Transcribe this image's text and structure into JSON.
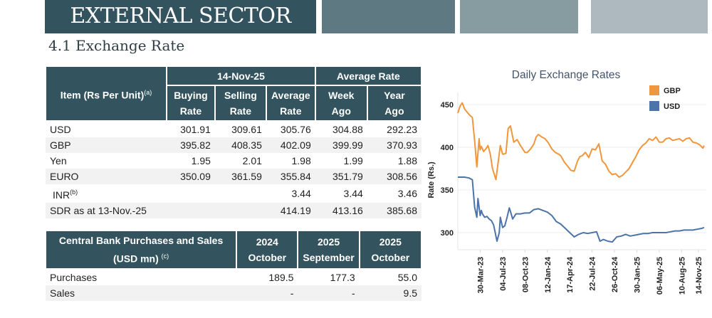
{
  "banner": {
    "title": "EXTERNAL SECTOR"
  },
  "section": {
    "title": "4.1 Exchange Rate"
  },
  "rates_table": {
    "item_header": "Item (Rs Per Unit)",
    "item_note": "(a)",
    "date_group": "14-Nov-25",
    "avg_group": "Average Rate",
    "cols": [
      {
        "line1": "Buying",
        "line2": "Rate"
      },
      {
        "line1": "Selling",
        "line2": "Rate"
      },
      {
        "line1": "Average",
        "line2": "Rate"
      },
      {
        "line1": "Week",
        "line2": "Ago"
      },
      {
        "line1": "Year",
        "line2": "Ago"
      }
    ],
    "rows": [
      {
        "item": "USD",
        "note": "",
        "values": [
          "301.91",
          "309.61",
          "305.76",
          "304.88",
          "292.23"
        ]
      },
      {
        "item": "GBP",
        "note": "",
        "values": [
          "395.82",
          "408.35",
          "402.09",
          "399.99",
          "370.93"
        ]
      },
      {
        "item": "Yen",
        "note": "",
        "values": [
          "1.95",
          "2.01",
          "1.98",
          "1.99",
          "1.88"
        ]
      },
      {
        "item": "EURO",
        "note": "",
        "values": [
          "350.09",
          "361.59",
          "355.84",
          "351.79",
          "308.56"
        ]
      },
      {
        "item": "INR",
        "note": "(b)",
        "values": [
          "",
          "",
          "3.44",
          "3.44",
          "3.46"
        ]
      },
      {
        "item": "SDR as at 13-Nov.-25",
        "note": "",
        "values": [
          "",
          "",
          "414.19",
          "413.16",
          "385.68"
        ]
      }
    ]
  },
  "cb_table": {
    "header_line1": "Central Bank Purchases and Sales",
    "header_line2": "(USD mn)",
    "header_note": "(c)",
    "cols": [
      {
        "year": "2024",
        "month": "October"
      },
      {
        "year": "2025",
        "month": "September"
      },
      {
        "year": "2025",
        "month": "October"
      }
    ],
    "rows": [
      {
        "label": "Purchases",
        "values": [
          "189.5",
          "177.3",
          "55.0"
        ]
      },
      {
        "label": "Sales",
        "values": [
          "-",
          "-",
          "9.5"
        ]
      }
    ]
  },
  "chart_data": {
    "type": "line",
    "title": "Daily Exchange Rates",
    "xlabel": "",
    "ylabel": "Rate (Rs.)",
    "ylim": [
      280,
      460
    ],
    "yticks": [
      300,
      350,
      400,
      450
    ],
    "grid": true,
    "legend_position": "top-right",
    "x_tick_labels": [
      "30-Mar-23",
      "04-Jul-23",
      "08-Oct-23",
      "12-Jan-24",
      "17-Apr-24",
      "22-Jul-24",
      "26-Oct-24",
      "30-Jan-25",
      "06-May-25",
      "10-Aug-25",
      "14-Nov-25"
    ],
    "x_tick_index": [
      1,
      2,
      3,
      4,
      5,
      6,
      7,
      8,
      9,
      10,
      10.75
    ],
    "x_range": [
      0,
      11.1
    ],
    "series": [
      {
        "name": "GBP",
        "color": "#f0963c",
        "x": [
          0,
          0.1,
          0.2,
          0.3,
          0.45,
          0.55,
          0.65,
          0.75,
          0.85,
          0.95,
          1.0,
          1.05,
          1.15,
          1.25,
          1.35,
          1.45,
          1.55,
          1.7,
          1.8,
          1.9,
          2.0,
          2.05,
          2.15,
          2.25,
          2.35,
          2.5,
          2.65,
          2.8,
          2.9,
          3.0,
          3.1,
          3.25,
          3.4,
          3.5,
          3.6,
          3.75,
          3.9,
          4.05,
          4.2,
          4.35,
          4.5,
          4.6,
          4.75,
          4.9,
          5.05,
          5.2,
          5.35,
          5.45,
          5.55,
          5.7,
          5.85,
          6.0,
          6.15,
          6.3,
          6.45,
          6.6,
          6.75,
          6.9,
          7.05,
          7.2,
          7.35,
          7.5,
          7.65,
          7.8,
          7.95,
          8.1,
          8.25,
          8.4,
          8.55,
          8.7,
          8.85,
          9.0,
          9.15,
          9.3,
          9.45,
          9.6,
          9.75,
          9.9,
          10.05,
          10.2,
          10.35,
          10.5,
          10.65,
          10.8,
          10.95,
          11.0
        ],
        "values": [
          440,
          448,
          452,
          445,
          440,
          437,
          435,
          408,
          377,
          410,
          397,
          401,
          395,
          398,
          402,
          392,
          375,
          362,
          382,
          402,
          392,
          392,
          393,
          422,
          425,
          406,
          409,
          402,
          398,
          394,
          394,
          398,
          404,
          412,
          415,
          412,
          410,
          405,
          398,
          394,
          392,
          390,
          383,
          378,
          373,
          372,
          384,
          389,
          390,
          394,
          388,
          398,
          397,
          404,
          384,
          380,
          372,
          368,
          369,
          365,
          367,
          371,
          375,
          382,
          389,
          397,
          402,
          405,
          410,
          408,
          412,
          406,
          406,
          410,
          411,
          408,
          409,
          410,
          407,
          410,
          411,
          406,
          405,
          403,
          399,
          402
        ]
      },
      {
        "name": "USD",
        "color": "#4d74a8",
        "x": [
          0,
          0.3,
          0.5,
          0.65,
          0.75,
          0.85,
          0.9,
          1.0,
          1.05,
          1.1,
          1.2,
          1.3,
          1.4,
          1.5,
          1.6,
          1.75,
          1.85,
          1.9,
          2.0,
          2.1,
          2.2,
          2.3,
          2.35,
          2.45,
          2.6,
          2.8,
          3.0,
          3.2,
          3.4,
          3.6,
          3.8,
          4.0,
          4.2,
          4.4,
          4.6,
          4.8,
          5.0,
          5.2,
          5.4,
          5.6,
          5.8,
          6.0,
          6.2,
          6.35,
          6.5,
          6.7,
          6.9,
          7.1,
          7.3,
          7.5,
          7.7,
          7.9,
          8.1,
          8.3,
          8.5,
          8.7,
          8.9,
          9.1,
          9.3,
          9.5,
          9.7,
          9.9,
          10.1,
          10.3,
          10.5,
          10.7,
          10.9,
          11.0
        ],
        "values": [
          365,
          365,
          364,
          362,
          330,
          318,
          340,
          320,
          326,
          322,
          318,
          319,
          316,
          314,
          309,
          290,
          300,
          318,
          306,
          308,
          318,
          329,
          325,
          316,
          322,
          322,
          323,
          323,
          327,
          328,
          326,
          324,
          320,
          313,
          310,
          305,
          300,
          295,
          298,
          300,
          299,
          300,
          301,
          290,
          292,
          290,
          289,
          295,
          296,
          298,
          296,
          297,
          298,
          299,
          299,
          300,
          300,
          300,
          300,
          301,
          302,
          302,
          303,
          303,
          303,
          304,
          305,
          306
        ]
      }
    ]
  }
}
